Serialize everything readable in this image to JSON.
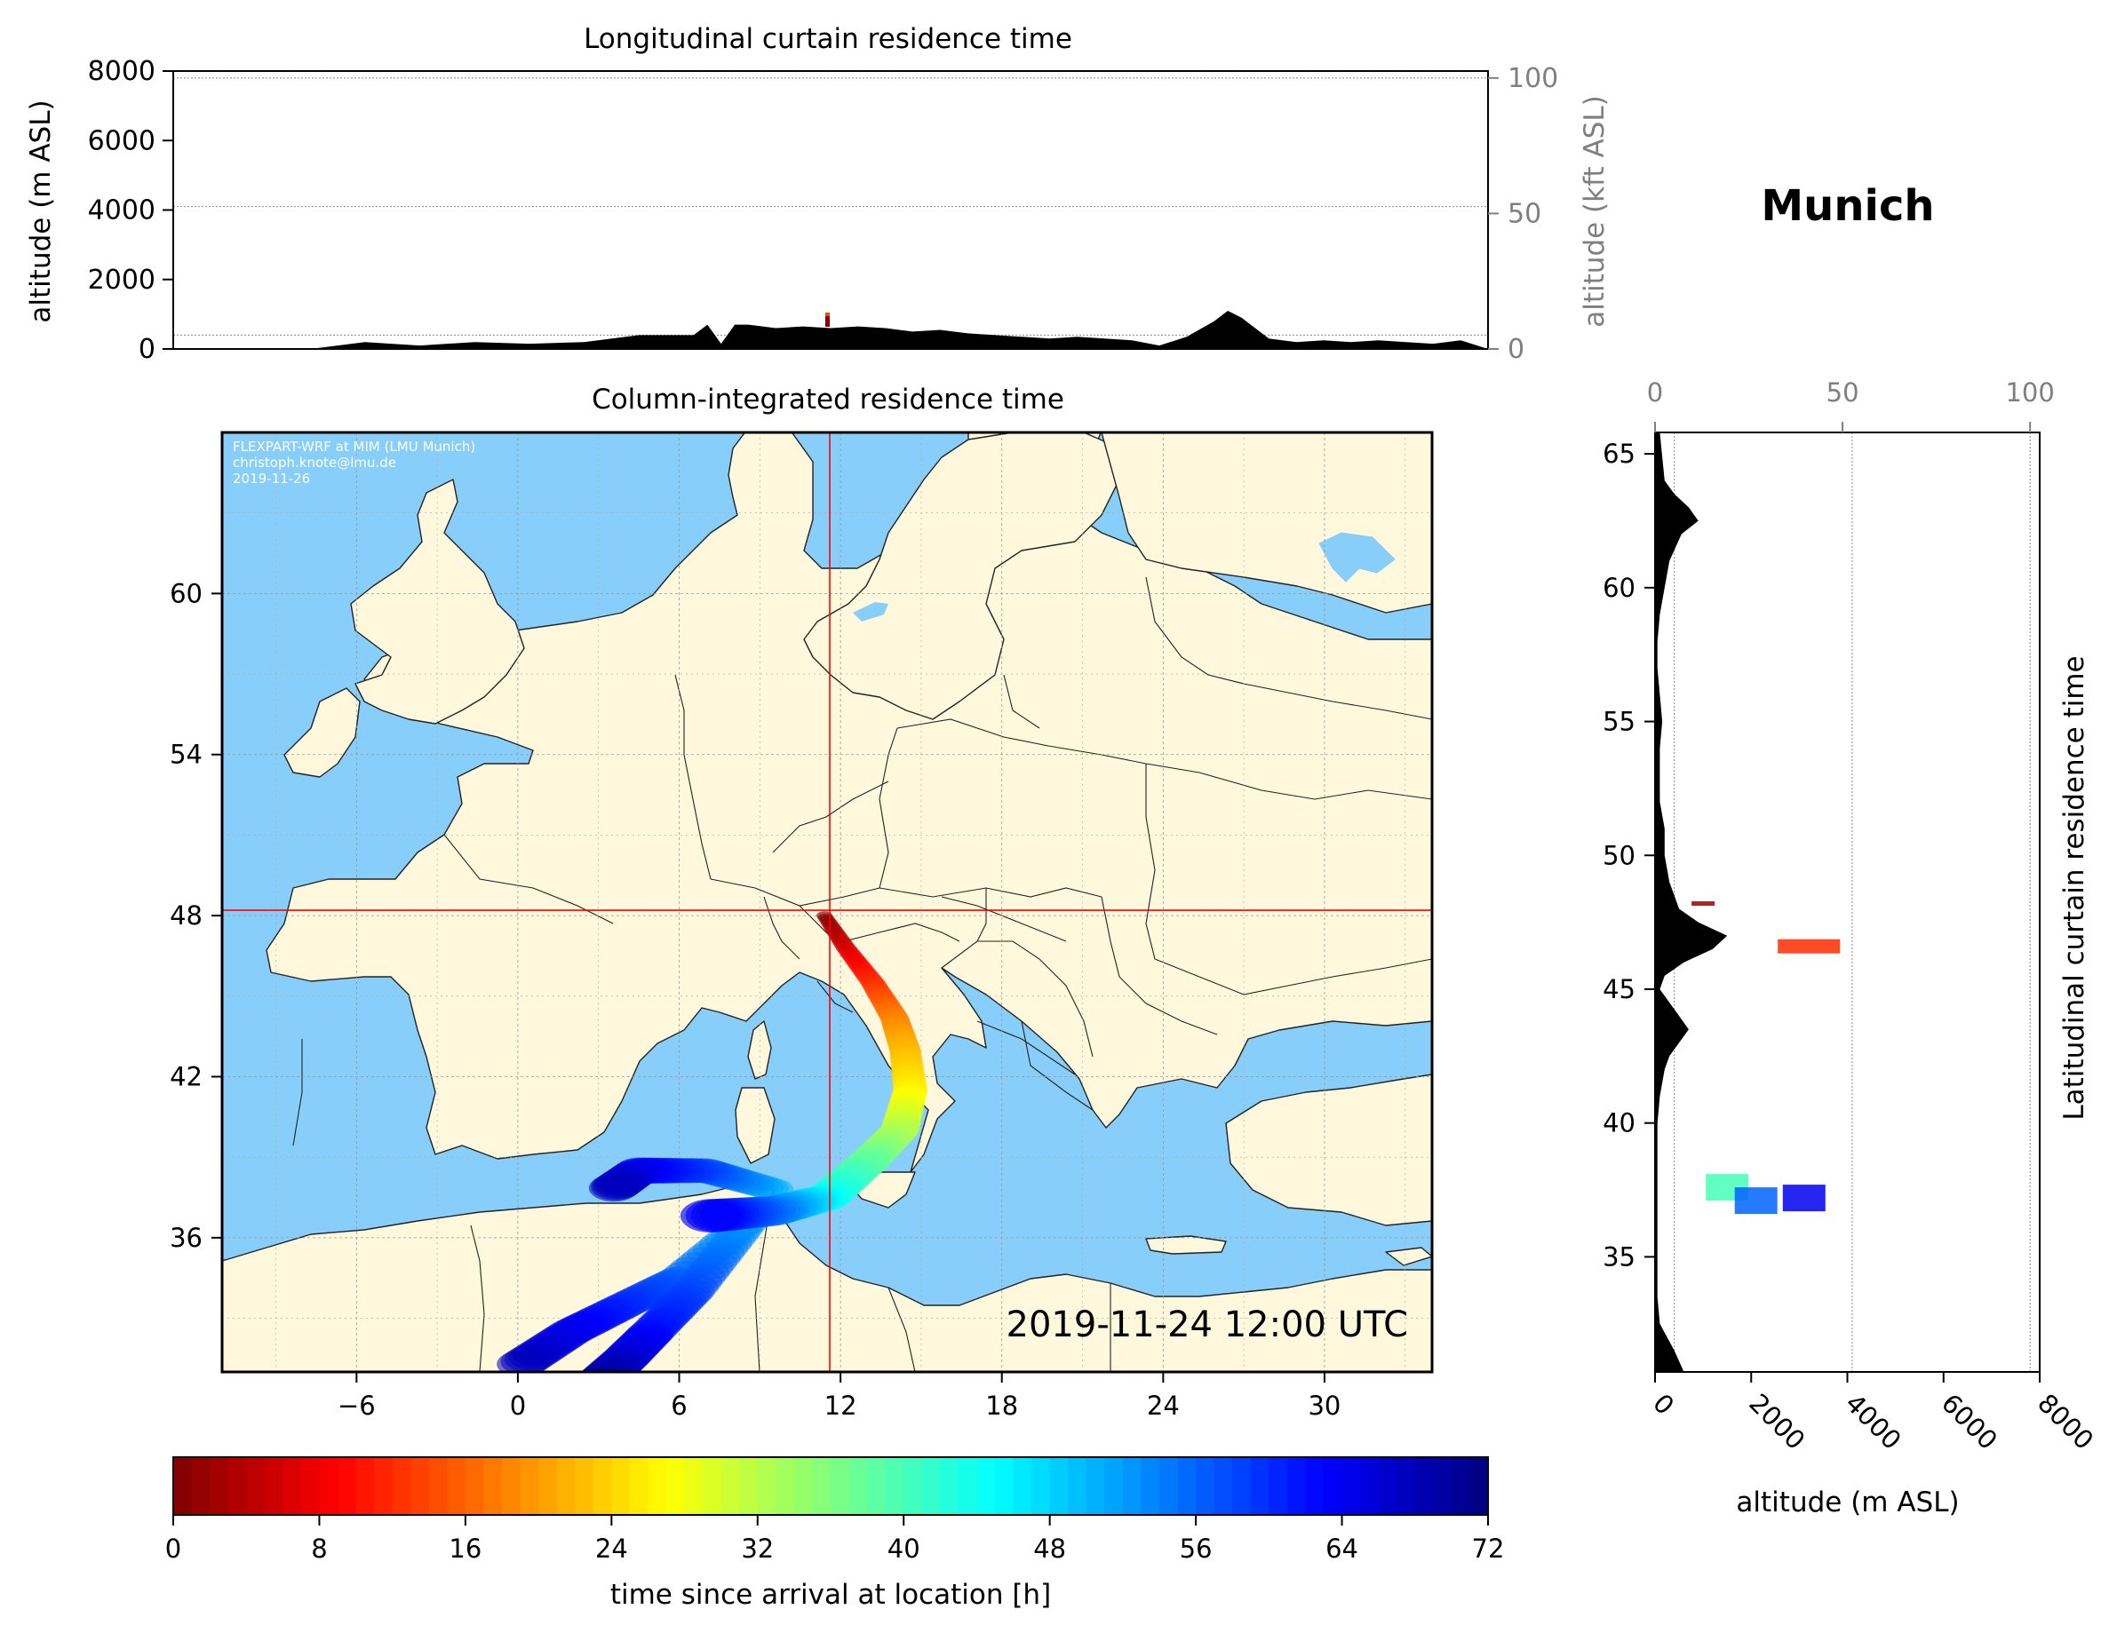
{
  "location": "Munich",
  "timestamp": "2019-11-24 12:00 UTC",
  "credit": {
    "line1": "FLEXPART-WRF at MIM (LMU Munich)",
    "line2": "christoph.knote@lmu.de",
    "line3": "2019-11-26"
  },
  "colors": {
    "ocean": "#87cefa",
    "land": "#fff8dc",
    "terrain": "#000000",
    "crosshair": "#ff0000"
  },
  "chart_data": [
    {
      "type": "area",
      "title": "Longitudinal curtain residence time",
      "ylabel": "altitude (m ASL)",
      "ylabel_right": "altitude (kft ASL)",
      "yticks": [
        "0",
        "2000",
        "4000",
        "6000",
        "8000"
      ],
      "yticks_right": [
        "0",
        "50",
        "100"
      ],
      "xlim": [
        -13,
        35
      ],
      "ylim": [
        0,
        8000
      ],
      "grid": true,
      "terrain_series": {
        "x": [
          -13,
          -8,
          -6,
          -4,
          -2,
          0,
          2,
          4,
          6,
          6.5,
          7,
          7.5,
          8,
          9,
          10,
          11,
          12,
          13,
          14,
          15,
          16,
          17,
          18,
          19,
          20,
          21,
          22,
          23,
          24,
          25,
          25.5,
          26,
          27,
          28,
          29,
          30,
          31,
          32,
          33,
          34,
          35
        ],
        "y": [
          0,
          0,
          200,
          100,
          200,
          150,
          200,
          400,
          400,
          700,
          150,
          700,
          700,
          600,
          650,
          600,
          650,
          600,
          500,
          550,
          450,
          400,
          350,
          300,
          350,
          300,
          250,
          100,
          350,
          800,
          1100,
          900,
          300,
          200,
          250,
          200,
          250,
          200,
          150,
          250,
          0
        ]
      }
    },
    {
      "type": "heatmap",
      "title": "Column-integrated residence time",
      "xticks": [
        "−6",
        "0",
        "6",
        "12",
        "18",
        "24",
        "30"
      ],
      "yticks": [
        "36",
        "42",
        "48",
        "54",
        "60"
      ],
      "xlim": [
        -11,
        34
      ],
      "ylim": [
        31,
        66
      ],
      "grid": true,
      "crosshair": {
        "lon": 11.6,
        "lat": 48.2
      },
      "plume_path": {
        "lon": [
          11.4,
          12.2,
          13.2,
          14.0,
          14.4,
          14.6,
          14.2,
          13.0,
          11.5,
          9.5,
          7.0
        ],
        "lat": [
          48.0,
          46.8,
          45.5,
          44.2,
          43.0,
          41.5,
          40.0,
          38.8,
          37.5,
          37.0,
          36.8
        ],
        "hours": [
          0,
          6,
          12,
          18,
          22,
          26,
          32,
          38,
          44,
          54,
          64
        ]
      },
      "plume_branches": [
        {
          "lon": [
            9.0,
            6.0,
            4.0,
            2.0,
            0.0
          ],
          "lat": [
            37.0,
            34.5,
            33.5,
            32.5,
            31.2
          ],
          "hours": [
            50,
            56,
            60,
            64,
            68
          ]
        },
        {
          "lon": [
            8.5,
            6.5,
            5.0,
            4.0,
            3.0
          ],
          "lat": [
            36.5,
            34.0,
            32.5,
            31.5,
            30.6
          ],
          "hours": [
            52,
            58,
            62,
            66,
            70
          ]
        },
        {
          "lon": [
            9.5,
            7.0,
            4.5,
            3.5
          ],
          "lat": [
            37.8,
            38.5,
            38.5,
            37.8
          ],
          "hours": [
            50,
            58,
            64,
            68
          ]
        }
      ]
    },
    {
      "type": "area",
      "title": "Latitudinal curtain residence time",
      "xlabel": "altitude (m ASL)",
      "xticks": [
        "0",
        "2000",
        "4000",
        "6000",
        "8000"
      ],
      "xticks_top": [
        "0",
        "50",
        "100"
      ],
      "yticks": [
        "35",
        "40",
        "45",
        "50",
        "55",
        "60",
        "65"
      ],
      "xlim": [
        0,
        8000
      ],
      "ylim": [
        30.7,
        65.8
      ],
      "grid": true,
      "terrain_series": {
        "lat": [
          30.7,
          31.5,
          32.5,
          33.5,
          35,
          37,
          38,
          39,
          40,
          41,
          42,
          42.5,
          43,
          43.5,
          44,
          44.5,
          45,
          45.5,
          46,
          46.5,
          47,
          47.5,
          48,
          48.5,
          49,
          50,
          51,
          52,
          53,
          54,
          55,
          56,
          57,
          58,
          59,
          60,
          61,
          62,
          62.5,
          63,
          63.5,
          64,
          65.8
        ],
        "alt": [
          600,
          400,
          100,
          50,
          50,
          50,
          50,
          50,
          50,
          100,
          200,
          300,
          500,
          700,
          500,
          300,
          100,
          200,
          600,
          1200,
          1500,
          900,
          500,
          400,
          300,
          200,
          200,
          100,
          100,
          100,
          150,
          100,
          50,
          50,
          100,
          200,
          300,
          550,
          900,
          700,
          400,
          200,
          100
        ]
      },
      "residence_blobs": [
        {
          "lat": 46.6,
          "alt": 3200,
          "hours": 12
        },
        {
          "lat": 48.2,
          "alt": 1000,
          "hours": 2
        },
        {
          "lat": 37.6,
          "alt": 1500,
          "hours": 40
        },
        {
          "lat": 37.1,
          "alt": 2100,
          "hours": 56
        },
        {
          "lat": 37.2,
          "alt": 3100,
          "hours": 64
        }
      ]
    },
    {
      "type": "bar",
      "title": "",
      "xlabel": "time since arrival at location [h]",
      "ticks": [
        "0",
        "8",
        "16",
        "24",
        "32",
        "40",
        "48",
        "56",
        "64",
        "72"
      ],
      "range": [
        0,
        72
      ],
      "levels": 72
    }
  ]
}
